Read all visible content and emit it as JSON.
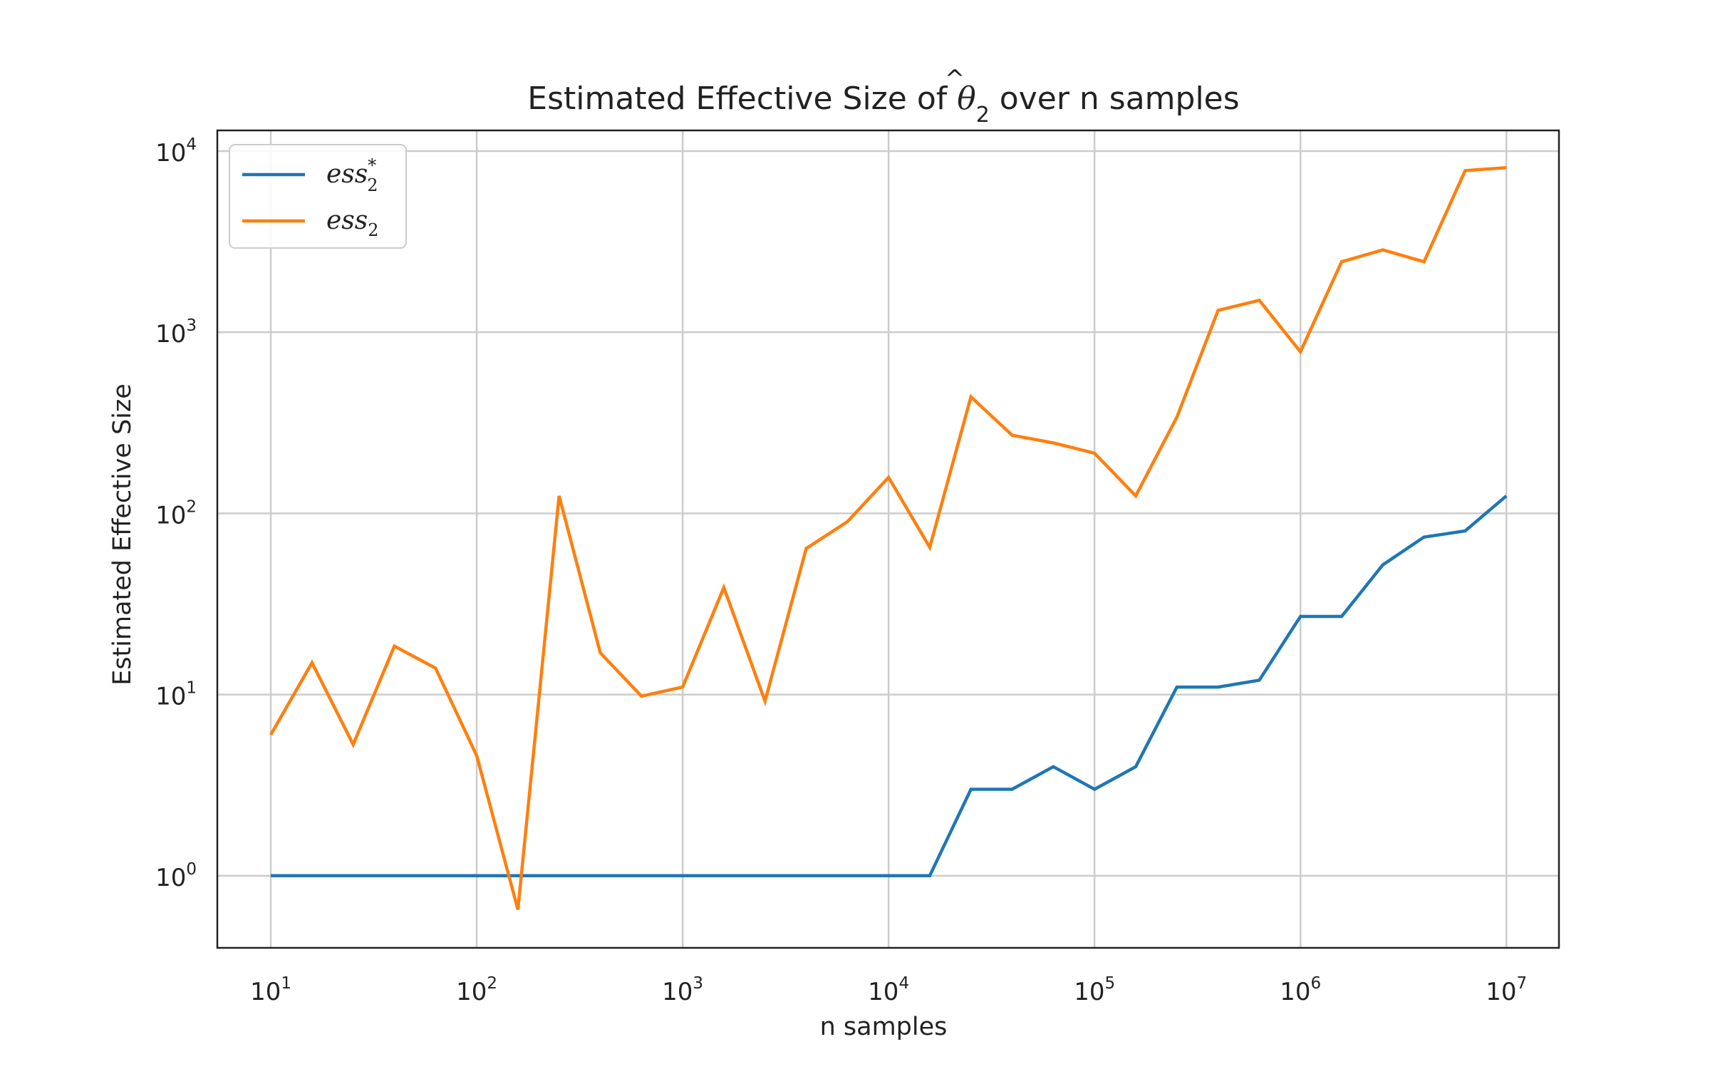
{
  "chart_data": {
    "type": "line",
    "title_parts": {
      "prefix": "Estimated Effective Size of ",
      "symbol": "θ",
      "hat": "^",
      "subscript": "2",
      "suffix": " over n samples"
    },
    "xlabel": "n samples",
    "ylabel": "Estimated Effective Size",
    "x_scale": "log",
    "y_scale": "log",
    "xlim": [
      5.5,
      18000000
    ],
    "ylim": [
      0.4,
      13000
    ],
    "grid": true,
    "legend_position": "top-left",
    "x_ticks": [
      {
        "base": "10",
        "exp": "1",
        "value": 10
      },
      {
        "base": "10",
        "exp": "2",
        "value": 100
      },
      {
        "base": "10",
        "exp": "3",
        "value": 1000
      },
      {
        "base": "10",
        "exp": "4",
        "value": 10000
      },
      {
        "base": "10",
        "exp": "5",
        "value": 100000
      },
      {
        "base": "10",
        "exp": "6",
        "value": 1000000
      },
      {
        "base": "10",
        "exp": "7",
        "value": 10000000
      }
    ],
    "y_ticks": [
      {
        "base": "10",
        "exp": "0",
        "value": 1
      },
      {
        "base": "10",
        "exp": "1",
        "value": 10
      },
      {
        "base": "10",
        "exp": "2",
        "value": 100
      },
      {
        "base": "10",
        "exp": "3",
        "value": 1000
      },
      {
        "base": "10",
        "exp": "4",
        "value": 10000
      }
    ],
    "x": [
      10,
      15.85,
      25.12,
      39.81,
      63.1,
      100,
      158.5,
      251.2,
      398.1,
      631,
      1000,
      1585,
      2512,
      3981,
      6310,
      10000,
      15850,
      25120,
      39810,
      63100,
      100000,
      158500,
      251200,
      398100,
      631000,
      1000000,
      1585000,
      2512000,
      3981000,
      6310000,
      10000000
    ],
    "series": [
      {
        "legend_base": "ess",
        "legend_sub": "2",
        "legend_sup": "*",
        "color": "#1f77b4",
        "values": [
          1,
          1,
          1,
          1,
          1,
          1,
          1,
          1,
          1,
          1,
          1,
          1,
          1,
          1,
          1,
          1,
          1,
          3,
          3,
          4,
          3,
          4,
          11,
          11,
          12,
          27,
          27,
          52,
          74,
          80,
          125
        ]
      },
      {
        "legend_base": "ess",
        "legend_sub": "2",
        "legend_sup": "",
        "color": "#ff7f0e",
        "values": [
          6,
          15,
          5.3,
          18.5,
          14,
          4.6,
          0.65,
          125,
          17,
          9.8,
          11,
          39,
          9.2,
          64,
          90,
          158,
          65,
          440,
          270,
          245,
          215,
          125,
          340,
          1320,
          1500,
          780,
          2450,
          2850,
          2450,
          7800,
          8100
        ]
      }
    ]
  }
}
